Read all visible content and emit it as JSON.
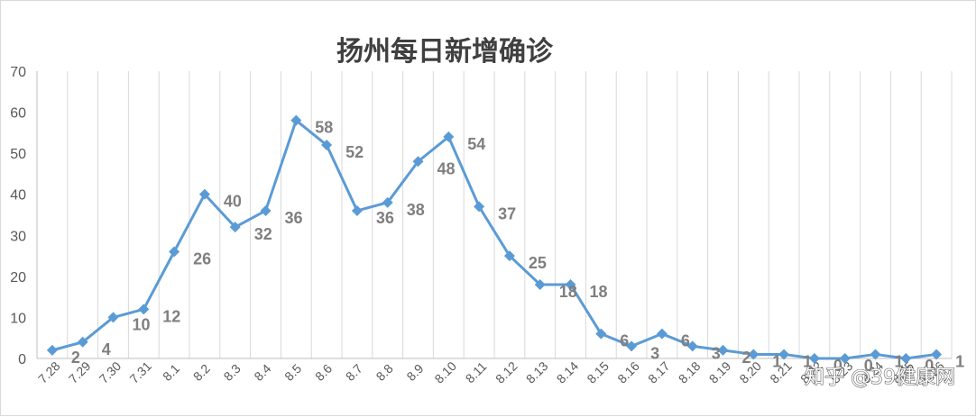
{
  "chart_data": {
    "type": "line",
    "title": "扬州每日新增确诊",
    "xlabel": "",
    "ylabel": "",
    "categories": [
      "7.28",
      "7.29",
      "7.30",
      "7.31",
      "8.1",
      "8.2",
      "8.3",
      "8.4",
      "8.5",
      "8.6",
      "8.7",
      "8.8",
      "8.9",
      "8.10",
      "8.11",
      "8.12",
      "8.13",
      "8.14",
      "8.15",
      "8.16",
      "8.17",
      "8.18",
      "8.19",
      "8.20",
      "8.21",
      "8.22",
      "8.23",
      "8.24",
      "8.25",
      "8.26"
    ],
    "series": [
      {
        "values": [
          2,
          4,
          10,
          12,
          26,
          40,
          32,
          36,
          58,
          52,
          36,
          38,
          48,
          54,
          37,
          25,
          18,
          18,
          6,
          3,
          6,
          3,
          2,
          1,
          1,
          0,
          0,
          1,
          0,
          1
        ]
      }
    ],
    "ylim": [
      0,
      70
    ],
    "yticks": [
      0,
      10,
      20,
      30,
      40,
      50,
      60,
      70
    ],
    "grid": "vertical",
    "legend": "none",
    "colors": {
      "line": "#5b9bd5",
      "grid": "#d9d9d9",
      "label": "#7f7f7f"
    }
  },
  "watermark": "知乎 @39健康网"
}
